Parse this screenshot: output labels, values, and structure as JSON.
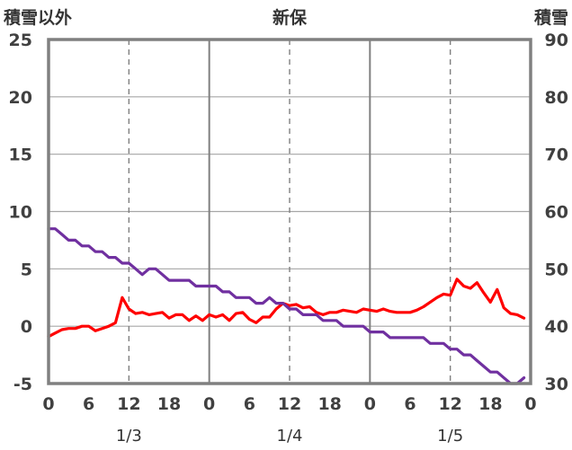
{
  "chart_data": {
    "type": "line",
    "title": "新保",
    "left_axis_label": "積雪以外",
    "right_axis_label": "積雪",
    "ylim_left": [
      -5,
      25
    ],
    "yticks_left": [
      -5,
      0,
      5,
      10,
      15,
      20,
      25
    ],
    "ylim_right": [
      30,
      90
    ],
    "yticks_right": [
      30,
      40,
      50,
      60,
      70,
      80,
      90
    ],
    "x_hours_range": [
      0,
      72
    ],
    "x_tick_labels": [
      "0",
      "6",
      "12",
      "18",
      "0",
      "6",
      "12",
      "18",
      "0",
      "6",
      "12",
      "18",
      "0"
    ],
    "date_labels": [
      {
        "text": "1/3",
        "hour": 12
      },
      {
        "text": "1/4",
        "hour": 36
      },
      {
        "text": "1/5",
        "hour": 60
      }
    ],
    "grid": true,
    "series": [
      {
        "axis": "left",
        "color": "#ff0000",
        "points": [
          [
            0,
            -0.9
          ],
          [
            1,
            -0.6
          ],
          [
            2,
            -0.3
          ],
          [
            3,
            -0.2
          ],
          [
            4,
            -0.2
          ],
          [
            5,
            0.0
          ],
          [
            6,
            0.0
          ],
          [
            7,
            -0.4
          ],
          [
            8,
            -0.2
          ],
          [
            9,
            0.0
          ],
          [
            10,
            0.3
          ],
          [
            11,
            2.5
          ],
          [
            12,
            1.5
          ],
          [
            13,
            1.1
          ],
          [
            14,
            1.2
          ],
          [
            15,
            1.0
          ],
          [
            16,
            1.1
          ],
          [
            17,
            1.2
          ],
          [
            18,
            0.7
          ],
          [
            19,
            1.0
          ],
          [
            20,
            1.0
          ],
          [
            21,
            0.5
          ],
          [
            22,
            0.9
          ],
          [
            23,
            0.5
          ],
          [
            24,
            1.0
          ],
          [
            25,
            0.8
          ],
          [
            26,
            1.0
          ],
          [
            27,
            0.5
          ],
          [
            28,
            1.1
          ],
          [
            29,
            1.2
          ],
          [
            30,
            0.6
          ],
          [
            31,
            0.3
          ],
          [
            32,
            0.8
          ],
          [
            33,
            0.8
          ],
          [
            34,
            1.5
          ],
          [
            35,
            2.0
          ],
          [
            36,
            1.8
          ],
          [
            37,
            1.9
          ],
          [
            38,
            1.6
          ],
          [
            39,
            1.7
          ],
          [
            40,
            1.2
          ],
          [
            41,
            1.0
          ],
          [
            42,
            1.2
          ],
          [
            43,
            1.2
          ],
          [
            44,
            1.4
          ],
          [
            45,
            1.3
          ],
          [
            46,
            1.2
          ],
          [
            47,
            1.5
          ],
          [
            48,
            1.4
          ],
          [
            49,
            1.3
          ],
          [
            50,
            1.5
          ],
          [
            51,
            1.3
          ],
          [
            52,
            1.2
          ],
          [
            53,
            1.2
          ],
          [
            54,
            1.2
          ],
          [
            55,
            1.4
          ],
          [
            56,
            1.7
          ],
          [
            57,
            2.1
          ],
          [
            58,
            2.5
          ],
          [
            59,
            2.8
          ],
          [
            60,
            2.7
          ],
          [
            61,
            4.1
          ],
          [
            62,
            3.5
          ],
          [
            63,
            3.3
          ],
          [
            64,
            3.8
          ],
          [
            65,
            2.9
          ],
          [
            66,
            2.1
          ],
          [
            67,
            3.2
          ],
          [
            68,
            1.6
          ],
          [
            69,
            1.1
          ],
          [
            70,
            1.0
          ],
          [
            71,
            0.7
          ]
        ]
      },
      {
        "axis": "right",
        "color": "#7030a0",
        "points": [
          [
            0,
            57
          ],
          [
            1,
            57
          ],
          [
            2,
            56
          ],
          [
            3,
            55
          ],
          [
            4,
            55
          ],
          [
            5,
            54
          ],
          [
            6,
            54
          ],
          [
            7,
            53
          ],
          [
            8,
            53
          ],
          [
            9,
            52
          ],
          [
            10,
            52
          ],
          [
            11,
            51
          ],
          [
            12,
            51
          ],
          [
            13,
            50
          ],
          [
            14,
            49
          ],
          [
            15,
            50
          ],
          [
            16,
            50
          ],
          [
            17,
            49
          ],
          [
            18,
            48
          ],
          [
            19,
            48
          ],
          [
            20,
            48
          ],
          [
            21,
            48
          ],
          [
            22,
            47
          ],
          [
            23,
            47
          ],
          [
            24,
            47
          ],
          [
            25,
            47
          ],
          [
            26,
            46
          ],
          [
            27,
            46
          ],
          [
            28,
            45
          ],
          [
            29,
            45
          ],
          [
            30,
            45
          ],
          [
            31,
            44
          ],
          [
            32,
            44
          ],
          [
            33,
            45
          ],
          [
            34,
            44
          ],
          [
            35,
            44
          ],
          [
            36,
            43
          ],
          [
            37,
            43
          ],
          [
            38,
            42
          ],
          [
            39,
            42
          ],
          [
            40,
            42
          ],
          [
            41,
            41
          ],
          [
            42,
            41
          ],
          [
            43,
            41
          ],
          [
            44,
            40
          ],
          [
            45,
            40
          ],
          [
            46,
            40
          ],
          [
            47,
            40
          ],
          [
            48,
            39
          ],
          [
            49,
            39
          ],
          [
            50,
            39
          ],
          [
            51,
            38
          ],
          [
            52,
            38
          ],
          [
            53,
            38
          ],
          [
            54,
            38
          ],
          [
            55,
            38
          ],
          [
            56,
            38
          ],
          [
            57,
            37
          ],
          [
            58,
            37
          ],
          [
            59,
            37
          ],
          [
            60,
            36
          ],
          [
            61,
            36
          ],
          [
            62,
            35
          ],
          [
            63,
            35
          ],
          [
            64,
            34
          ],
          [
            65,
            33
          ],
          [
            66,
            32
          ],
          [
            67,
            32
          ],
          [
            68,
            31
          ],
          [
            69,
            30
          ],
          [
            70,
            30
          ],
          [
            71,
            31
          ]
        ]
      }
    ]
  }
}
